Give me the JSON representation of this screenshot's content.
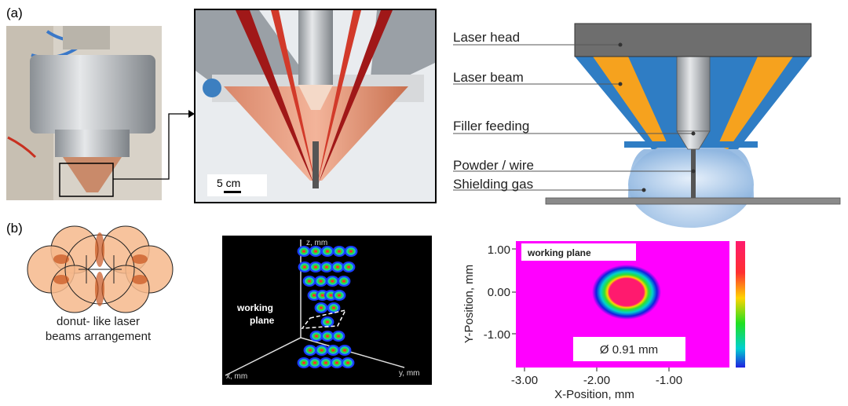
{
  "panel_a": {
    "label": "(a)",
    "scale_bar": "5 cm",
    "schematic_labels": [
      "Laser head",
      "Laser beam",
      "Filler feeding",
      "Powder / wire",
      "Shielding gas"
    ]
  },
  "panel_b": {
    "label": "(b)",
    "donut_caption_line1": "donut- like laser",
    "donut_caption_line2": "beams arrangement",
    "plot3d": {
      "z_axis": "z, mm",
      "x_axis": "x, mm",
      "y_axis": "y, mm",
      "annotation_line1": "working",
      "annotation_line2": "plane"
    },
    "heatmap": {
      "title_box": "working plane",
      "diameter_label": "Ø 0.91 mm",
      "xlabel": "X-Position, mm",
      "ylabel": "Y-Position, mm",
      "xticks": [
        "-3.00",
        "-2.00",
        "-1.00"
      ],
      "yticks": [
        "1.00",
        "0.00",
        "-1.00"
      ],
      "colors": {
        "background": "#ff00ff",
        "core": "#ff1a6e"
      }
    }
  }
}
